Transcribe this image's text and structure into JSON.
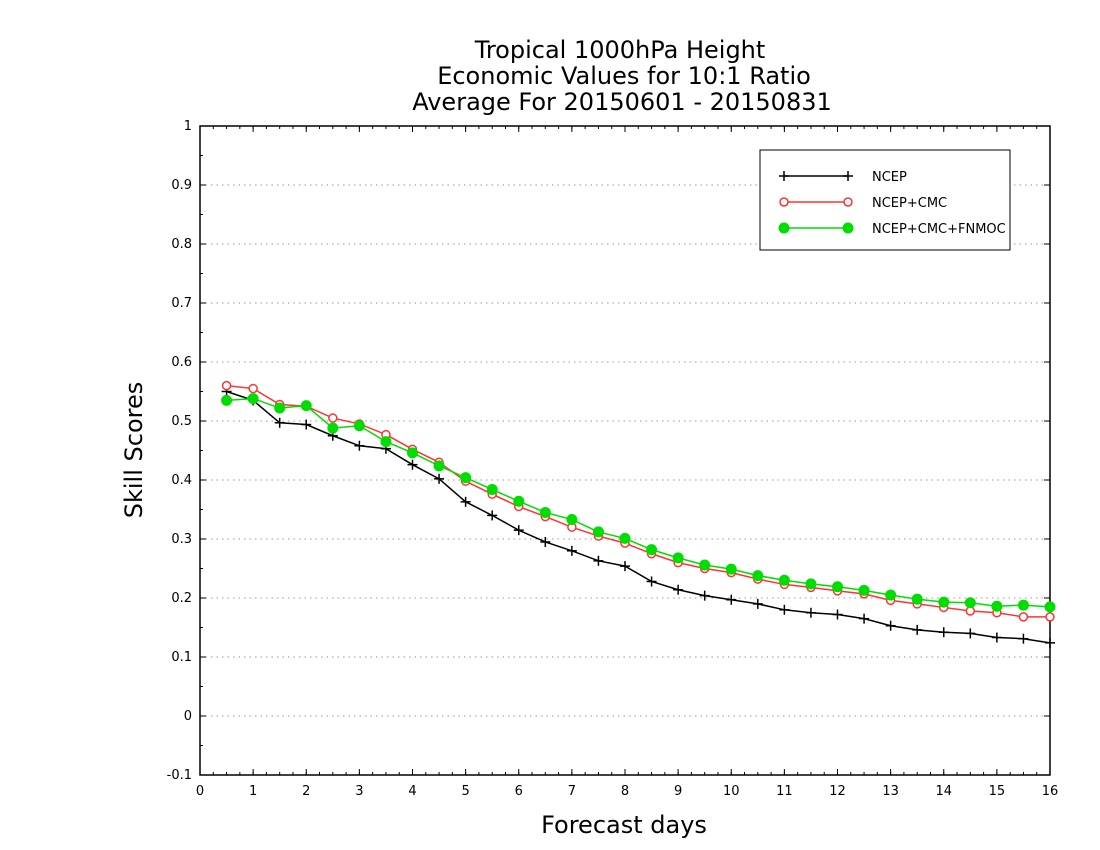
{
  "chart_data": {
    "type": "line",
    "title_lines": [
      "Tropical 1000hPa Height",
      "Economic Values for 10:1 Ratio",
      "Average For 20150601 - 20150831"
    ],
    "xlabel": "Forecast days",
    "ylabel": "Skill Scores",
    "xlim": [
      0,
      16
    ],
    "ylim": [
      -0.1,
      1
    ],
    "xticks": [
      "0",
      "1",
      "2",
      "3",
      "4",
      "5",
      "6",
      "7",
      "8",
      "9",
      "10",
      "11",
      "12",
      "13",
      "14",
      "15",
      "16"
    ],
    "yticks": [
      "-0.1",
      "0",
      "0.1",
      "0.2",
      "0.3",
      "0.4",
      "0.5",
      "0.6",
      "0.7",
      "0.8",
      "0.9",
      "1"
    ],
    "grid": "horizontal dotted",
    "legend_position": "top-right",
    "x": [
      0.5,
      1,
      1.5,
      2,
      2.5,
      3,
      3.5,
      4,
      4.5,
      5,
      5.5,
      6,
      6.5,
      7,
      7.5,
      8,
      8.5,
      9,
      9.5,
      10,
      10.5,
      11,
      11.5,
      12,
      12.5,
      13,
      13.5,
      14,
      14.5,
      15,
      15.5,
      16
    ],
    "series": [
      {
        "name": "NCEP",
        "color": "#000000",
        "marker": "plus",
        "values": [
          0.55,
          0.535,
          0.497,
          0.494,
          0.475,
          0.458,
          0.453,
          0.426,
          0.402,
          0.363,
          0.34,
          0.315,
          0.295,
          0.28,
          0.263,
          0.254,
          0.228,
          0.214,
          0.204,
          0.197,
          0.19,
          0.18,
          0.175,
          0.172,
          0.165,
          0.153,
          0.146,
          0.142,
          0.14,
          0.133,
          0.131,
          0.124
        ]
      },
      {
        "name": "NCEP+CMC",
        "color": "#ff3333",
        "marker": "open-circle",
        "values": [
          0.56,
          0.555,
          0.528,
          0.525,
          0.505,
          0.495,
          0.477,
          0.452,
          0.43,
          0.398,
          0.376,
          0.355,
          0.338,
          0.32,
          0.305,
          0.293,
          0.275,
          0.26,
          0.25,
          0.243,
          0.232,
          0.223,
          0.218,
          0.212,
          0.207,
          0.196,
          0.19,
          0.184,
          0.178,
          0.175,
          0.168,
          0.168
        ]
      },
      {
        "name": "NCEP+CMC+FNMOC",
        "color": "#00dd00",
        "marker": "filled-circle",
        "values": [
          0.535,
          0.538,
          0.522,
          0.526,
          0.488,
          0.492,
          0.465,
          0.446,
          0.424,
          0.404,
          0.384,
          0.364,
          0.345,
          0.333,
          0.312,
          0.301,
          0.282,
          0.268,
          0.256,
          0.249,
          0.238,
          0.23,
          0.224,
          0.219,
          0.213,
          0.205,
          0.198,
          0.193,
          0.192,
          0.186,
          0.188,
          0.185
        ]
      }
    ]
  }
}
